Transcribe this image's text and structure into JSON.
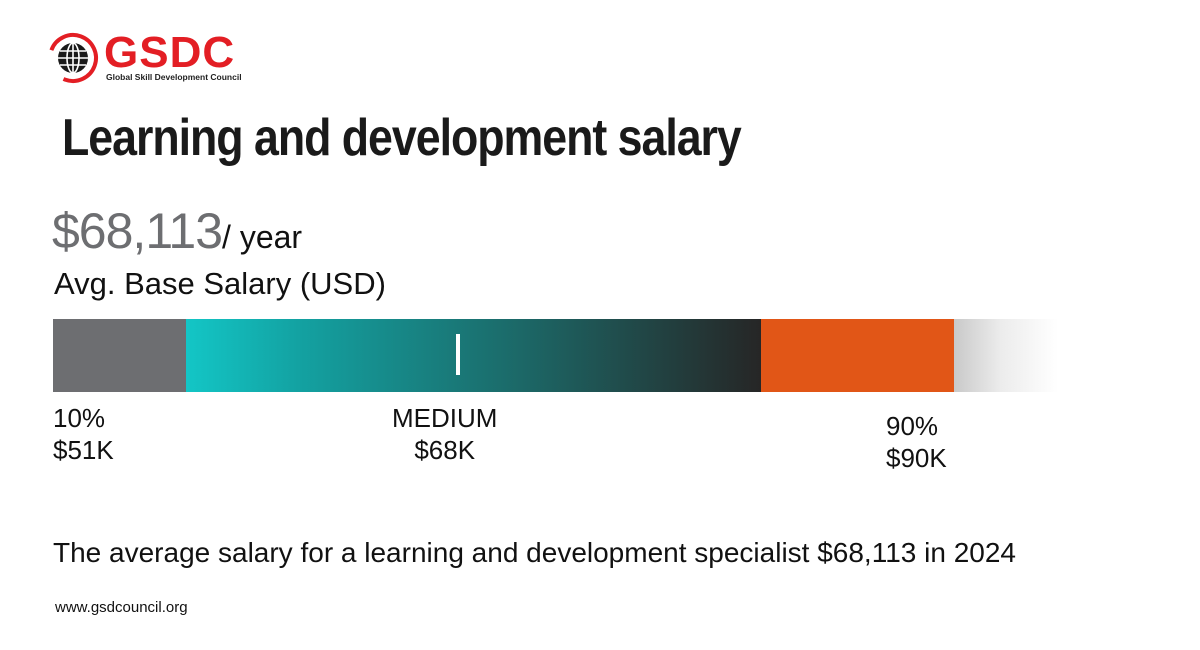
{
  "brand": {
    "logo_text": "GSDC",
    "logo_subtitle": "Global Skill Development Council",
    "logo_color": "#e31e24"
  },
  "title": "Learning and development salary",
  "salary": {
    "amount": "$68,113",
    "unit": "/ year",
    "label": "Avg. Base Salary (USD)"
  },
  "range": {
    "low": {
      "percentile": "10%",
      "value": "$51K",
      "color": "#6d6e71"
    },
    "median": {
      "percentile": "MEDIUM",
      "value": "$68K"
    },
    "high": {
      "percentile": "90%",
      "value": "$90K",
      "color": "#e15617"
    }
  },
  "summary": "The average salary for a learning and development specialist $68,113 in 2024",
  "website": "www.gsdcouncil.org"
}
